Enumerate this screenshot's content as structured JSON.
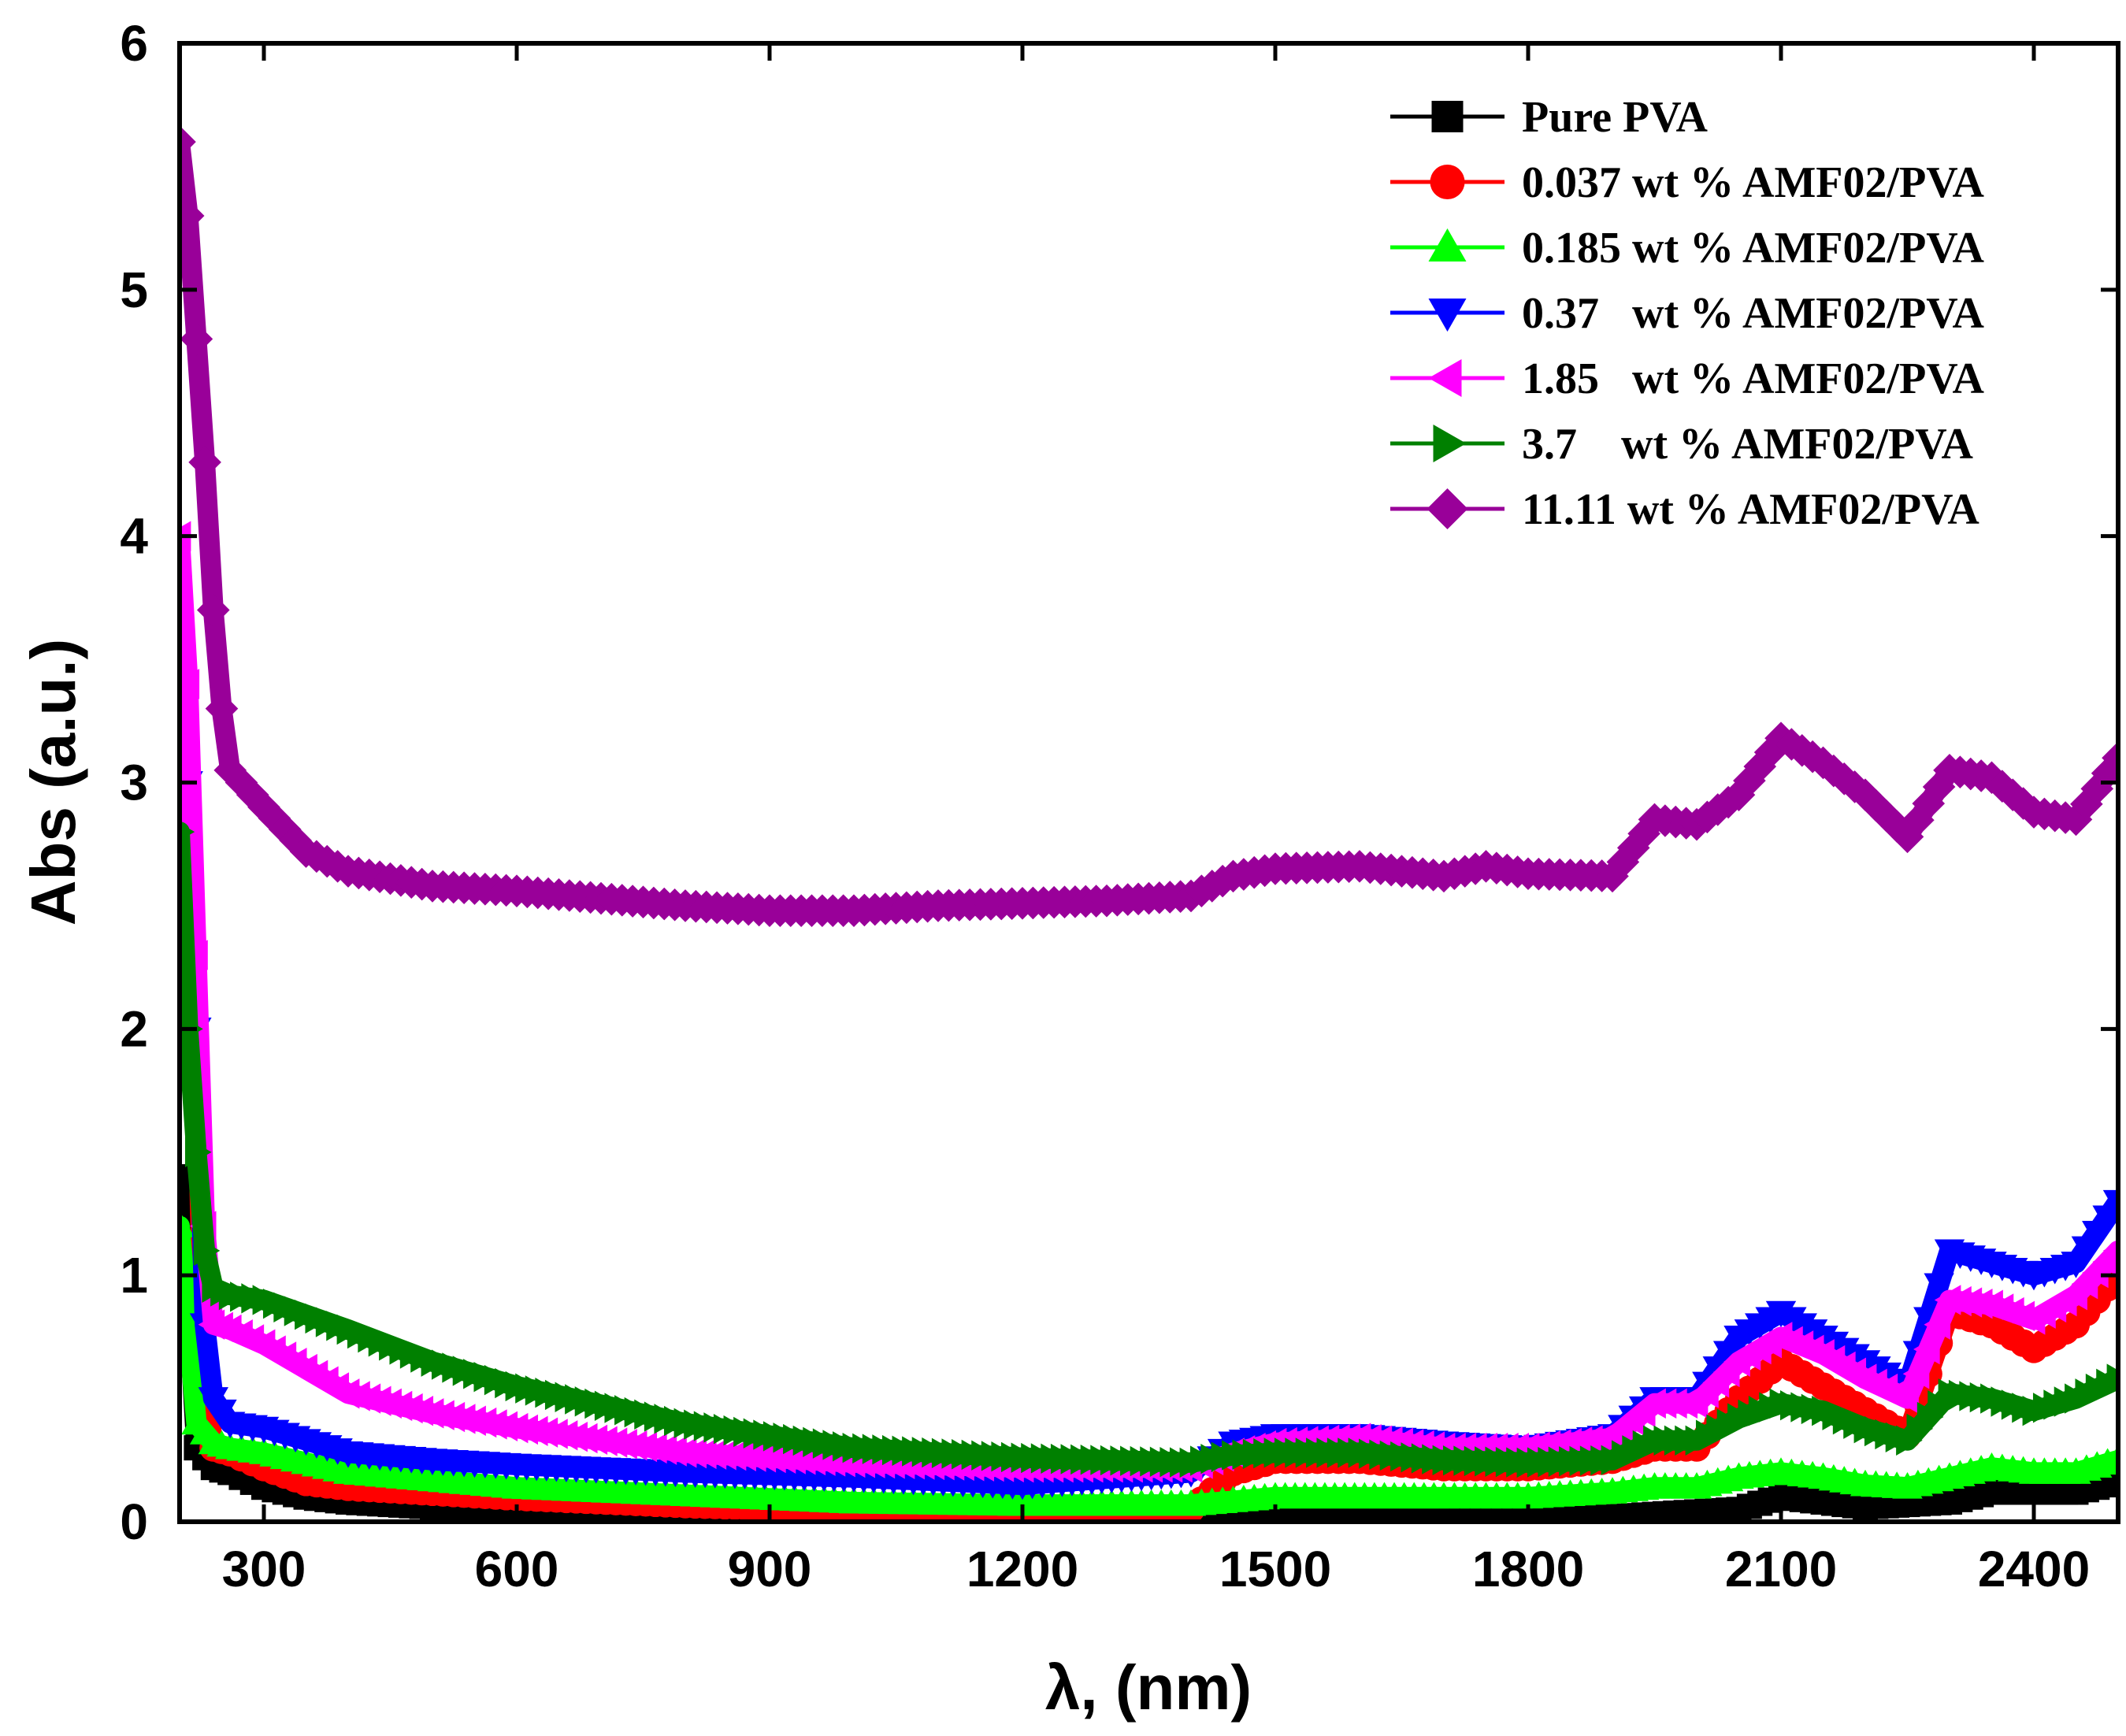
{
  "chart_data": {
    "type": "line",
    "title": "",
    "xlabel": "λ, (nm)",
    "ylabel": "Abs (a.u.)",
    "xlim": [
      200,
      2500
    ],
    "ylim": [
      0,
      6
    ],
    "x_ticks": [
      300,
      600,
      900,
      1200,
      1500,
      1800,
      2100,
      2400
    ],
    "y_ticks": [
      0,
      1,
      2,
      3,
      4,
      5,
      6
    ],
    "legend_position": "top-right",
    "series": [
      {
        "name": "Pure PVA",
        "color": "#000000",
        "marker": "square",
        "points": [
          [
            200,
            1.4
          ],
          [
            210,
            0.9
          ],
          [
            220,
            0.3
          ],
          [
            240,
            0.22
          ],
          [
            260,
            0.2
          ],
          [
            300,
            0.14
          ],
          [
            350,
            0.1
          ],
          [
            400,
            0.08
          ],
          [
            500,
            0.06
          ],
          [
            600,
            0.05
          ],
          [
            800,
            0.03
          ],
          [
            1000,
            0.02
          ],
          [
            1200,
            0.02
          ],
          [
            1400,
            0.02
          ],
          [
            1500,
            0.03
          ],
          [
            1700,
            0.03
          ],
          [
            1800,
            0.02
          ],
          [
            1900,
            0.02
          ],
          [
            2000,
            0.04
          ],
          [
            2050,
            0.05
          ],
          [
            2100,
            0.1
          ],
          [
            2150,
            0.08
          ],
          [
            2200,
            0.06
          ],
          [
            2300,
            0.08
          ],
          [
            2350,
            0.12
          ],
          [
            2400,
            0.12
          ],
          [
            2450,
            0.12
          ],
          [
            2500,
            0.16
          ]
        ]
      },
      {
        "name": "0.037 wt % AMF02/PVA",
        "color": "#ff0000",
        "marker": "circle",
        "points": [
          [
            200,
            3.0
          ],
          [
            210,
            2.5
          ],
          [
            220,
            1.8
          ],
          [
            230,
            0.6
          ],
          [
            240,
            0.3
          ],
          [
            260,
            0.28
          ],
          [
            300,
            0.22
          ],
          [
            350,
            0.16
          ],
          [
            400,
            0.14
          ],
          [
            500,
            0.12
          ],
          [
            600,
            0.1
          ],
          [
            800,
            0.07
          ],
          [
            1000,
            0.05
          ],
          [
            1200,
            0.04
          ],
          [
            1400,
            0.05
          ],
          [
            1450,
            0.2
          ],
          [
            1500,
            0.25
          ],
          [
            1600,
            0.25
          ],
          [
            1700,
            0.22
          ],
          [
            1800,
            0.22
          ],
          [
            1900,
            0.25
          ],
          [
            1950,
            0.3
          ],
          [
            2000,
            0.3
          ],
          [
            2050,
            0.5
          ],
          [
            2100,
            0.65
          ],
          [
            2150,
            0.55
          ],
          [
            2200,
            0.45
          ],
          [
            2250,
            0.35
          ],
          [
            2300,
            0.85
          ],
          [
            2350,
            0.8
          ],
          [
            2400,
            0.7
          ],
          [
            2450,
            0.8
          ],
          [
            2500,
            1.0
          ]
        ]
      },
      {
        "name": "0.185 wt % AMF02/PVA",
        "color": "#00ff00",
        "marker": "triangle-up",
        "points": [
          [
            200,
            1.2
          ],
          [
            210,
            0.8
          ],
          [
            220,
            0.4
          ],
          [
            240,
            0.32
          ],
          [
            260,
            0.3
          ],
          [
            300,
            0.28
          ],
          [
            400,
            0.2
          ],
          [
            500,
            0.17
          ],
          [
            600,
            0.14
          ],
          [
            800,
            0.11
          ],
          [
            1000,
            0.08
          ],
          [
            1200,
            0.07
          ],
          [
            1400,
            0.07
          ],
          [
            1500,
            0.1
          ],
          [
            1700,
            0.1
          ],
          [
            1800,
            0.1
          ],
          [
            1900,
            0.12
          ],
          [
            1950,
            0.14
          ],
          [
            2000,
            0.14
          ],
          [
            2050,
            0.18
          ],
          [
            2100,
            0.2
          ],
          [
            2150,
            0.18
          ],
          [
            2200,
            0.15
          ],
          [
            2250,
            0.14
          ],
          [
            2300,
            0.18
          ],
          [
            2350,
            0.22
          ],
          [
            2400,
            0.2
          ],
          [
            2450,
            0.2
          ],
          [
            2500,
            0.25
          ]
        ]
      },
      {
        "name": "0.37   wt % AMF02/PVA",
        "color": "#0000ff",
        "marker": "triangle-down",
        "points": [
          [
            200,
            3.5
          ],
          [
            210,
            3.0
          ],
          [
            220,
            2.0
          ],
          [
            230,
            0.8
          ],
          [
            240,
            0.5
          ],
          [
            260,
            0.4
          ],
          [
            300,
            0.38
          ],
          [
            400,
            0.28
          ],
          [
            500,
            0.25
          ],
          [
            600,
            0.23
          ],
          [
            800,
            0.2
          ],
          [
            1000,
            0.18
          ],
          [
            1200,
            0.15
          ],
          [
            1400,
            0.2
          ],
          [
            1450,
            0.32
          ],
          [
            1500,
            0.35
          ],
          [
            1600,
            0.35
          ],
          [
            1700,
            0.32
          ],
          [
            1800,
            0.3
          ],
          [
            1900,
            0.35
          ],
          [
            1950,
            0.5
          ],
          [
            2000,
            0.5
          ],
          [
            2050,
            0.75
          ],
          [
            2100,
            0.85
          ],
          [
            2150,
            0.75
          ],
          [
            2200,
            0.65
          ],
          [
            2250,
            0.55
          ],
          [
            2300,
            1.1
          ],
          [
            2350,
            1.05
          ],
          [
            2400,
            1.0
          ],
          [
            2450,
            1.05
          ],
          [
            2500,
            1.3
          ]
        ]
      },
      {
        "name": "1.85   wt % AMF02/PVA",
        "color": "#ff00ff",
        "marker": "triangle-left",
        "points": [
          [
            200,
            4.0
          ],
          [
            210,
            3.4
          ],
          [
            220,
            2.3
          ],
          [
            230,
            1.2
          ],
          [
            240,
            0.8
          ],
          [
            260,
            0.78
          ],
          [
            300,
            0.72
          ],
          [
            400,
            0.52
          ],
          [
            500,
            0.44
          ],
          [
            600,
            0.38
          ],
          [
            800,
            0.28
          ],
          [
            1000,
            0.24
          ],
          [
            1200,
            0.22
          ],
          [
            1400,
            0.22
          ],
          [
            1450,
            0.28
          ],
          [
            1500,
            0.32
          ],
          [
            1600,
            0.34
          ],
          [
            1700,
            0.3
          ],
          [
            1800,
            0.3
          ],
          [
            1900,
            0.34
          ],
          [
            1950,
            0.48
          ],
          [
            2000,
            0.48
          ],
          [
            2050,
            0.65
          ],
          [
            2100,
            0.75
          ],
          [
            2150,
            0.68
          ],
          [
            2200,
            0.58
          ],
          [
            2250,
            0.5
          ],
          [
            2300,
            0.9
          ],
          [
            2350,
            0.88
          ],
          [
            2400,
            0.82
          ],
          [
            2450,
            0.92
          ],
          [
            2500,
            1.1
          ]
        ]
      },
      {
        "name": "3.7    wt % AMF02/PVA",
        "color": "#008000",
        "marker": "triangle-right",
        "points": [
          [
            200,
            2.8
          ],
          [
            210,
            2.0
          ],
          [
            220,
            1.5
          ],
          [
            230,
            1.1
          ],
          [
            240,
            0.95
          ],
          [
            260,
            0.92
          ],
          [
            300,
            0.9
          ],
          [
            400,
            0.78
          ],
          [
            500,
            0.65
          ],
          [
            600,
            0.55
          ],
          [
            800,
            0.4
          ],
          [
            1000,
            0.3
          ],
          [
            1200,
            0.26
          ],
          [
            1400,
            0.24
          ],
          [
            1450,
            0.27
          ],
          [
            1500,
            0.28
          ],
          [
            1600,
            0.28
          ],
          [
            1700,
            0.25
          ],
          [
            1800,
            0.24
          ],
          [
            1900,
            0.25
          ],
          [
            1950,
            0.33
          ],
          [
            2000,
            0.33
          ],
          [
            2050,
            0.42
          ],
          [
            2100,
            0.48
          ],
          [
            2150,
            0.45
          ],
          [
            2200,
            0.38
          ],
          [
            2250,
            0.33
          ],
          [
            2300,
            0.52
          ],
          [
            2350,
            0.5
          ],
          [
            2400,
            0.45
          ],
          [
            2450,
            0.5
          ],
          [
            2500,
            0.58
          ]
        ]
      },
      {
        "name": "11.11 wt % AMF02/PVA",
        "color": "#990099",
        "marker": "diamond",
        "points": [
          [
            200,
            5.6
          ],
          [
            210,
            5.3
          ],
          [
            220,
            4.8
          ],
          [
            230,
            4.3
          ],
          [
            240,
            3.7
          ],
          [
            250,
            3.3
          ],
          [
            260,
            3.05
          ],
          [
            300,
            2.9
          ],
          [
            350,
            2.72
          ],
          [
            400,
            2.64
          ],
          [
            500,
            2.58
          ],
          [
            600,
            2.56
          ],
          [
            700,
            2.53
          ],
          [
            800,
            2.5
          ],
          [
            900,
            2.48
          ],
          [
            1000,
            2.48
          ],
          [
            1100,
            2.5
          ],
          [
            1200,
            2.51
          ],
          [
            1300,
            2.52
          ],
          [
            1400,
            2.54
          ],
          [
            1450,
            2.62
          ],
          [
            1500,
            2.65
          ],
          [
            1600,
            2.66
          ],
          [
            1700,
            2.62
          ],
          [
            1750,
            2.66
          ],
          [
            1800,
            2.63
          ],
          [
            1900,
            2.62
          ],
          [
            1950,
            2.85
          ],
          [
            2000,
            2.83
          ],
          [
            2050,
            2.95
          ],
          [
            2100,
            3.18
          ],
          [
            2150,
            3.08
          ],
          [
            2200,
            2.95
          ],
          [
            2250,
            2.78
          ],
          [
            2300,
            3.05
          ],
          [
            2350,
            3.02
          ],
          [
            2400,
            2.88
          ],
          [
            2450,
            2.85
          ],
          [
            2500,
            3.1
          ]
        ]
      }
    ]
  }
}
